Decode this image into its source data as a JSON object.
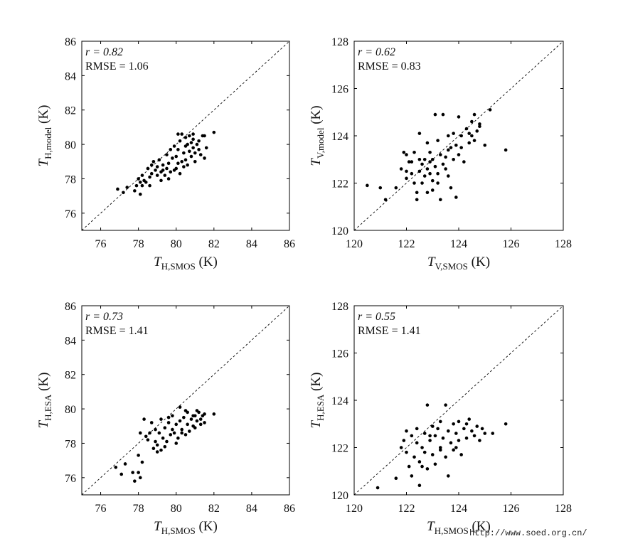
{
  "chart_data": [
    {
      "id": "p1",
      "type": "scatter",
      "xlim": [
        75,
        86
      ],
      "ylim": [
        75,
        86
      ],
      "xticks": [
        76,
        78,
        80,
        82,
        84,
        86
      ],
      "yticks": [
        76,
        78,
        80,
        82,
        84,
        86
      ],
      "stat_r": "r = 0.82",
      "stat_rmse": "RMSE = 1.06",
      "xlabel": {
        "main": "T",
        "sub": "H,SMOS",
        "unit": " (K)"
      },
      "ylabel": {
        "main": "T",
        "sub": "H,model",
        "unit": " (K)"
      },
      "points": [
        [
          76.9,
          77.4
        ],
        [
          77.2,
          77.2
        ],
        [
          77.4,
          77.5
        ],
        [
          77.8,
          77.3
        ],
        [
          77.9,
          77.6
        ],
        [
          78.1,
          77.8
        ],
        [
          78.2,
          78.2
        ],
        [
          78.0,
          78.0
        ],
        [
          78.3,
          77.9
        ],
        [
          78.1,
          77.1
        ],
        [
          78.2,
          77.6
        ],
        [
          78.4,
          77.8
        ],
        [
          78.6,
          78.1
        ],
        [
          78.5,
          78.6
        ],
        [
          78.7,
          78.3
        ],
        [
          78.7,
          78.8
        ],
        [
          78.8,
          79.0
        ],
        [
          78.9,
          78.5
        ],
        [
          79.0,
          78.2
        ],
        [
          79.0,
          78.7
        ],
        [
          79.1,
          79.1
        ],
        [
          79.2,
          78.4
        ],
        [
          79.2,
          77.9
        ],
        [
          79.3,
          78.8
        ],
        [
          79.4,
          78.2
        ],
        [
          79.5,
          78.6
        ],
        [
          79.5,
          79.4
        ],
        [
          79.6,
          78.9
        ],
        [
          79.7,
          78.4
        ],
        [
          79.7,
          79.7
        ],
        [
          79.8,
          79.2
        ],
        [
          79.9,
          78.5
        ],
        [
          79.9,
          79.9
        ],
        [
          80.0,
          78.6
        ],
        [
          80.0,
          79.3
        ],
        [
          80.1,
          78.9
        ],
        [
          80.1,
          79.7
        ],
        [
          80.2,
          78.3
        ],
        [
          80.2,
          80.2
        ],
        [
          80.3,
          79.0
        ],
        [
          80.3,
          80.6
        ],
        [
          80.4,
          78.7
        ],
        [
          80.4,
          79.5
        ],
        [
          80.5,
          80.4
        ],
        [
          80.5,
          79.1
        ],
        [
          80.6,
          80.0
        ],
        [
          80.6,
          78.8
        ],
        [
          80.7,
          79.6
        ],
        [
          80.7,
          80.5
        ],
        [
          80.8,
          79.3
        ],
        [
          80.8,
          80.1
        ],
        [
          80.9,
          79.8
        ],
        [
          80.9,
          80.3
        ],
        [
          81.0,
          79.5
        ],
        [
          81.0,
          79.0
        ],
        [
          81.1,
          80.0
        ],
        [
          81.2,
          79.7
        ],
        [
          81.3,
          79.4
        ],
        [
          81.4,
          80.5
        ],
        [
          81.5,
          79.2
        ],
        [
          81.6,
          79.8
        ],
        [
          82.0,
          80.7
        ],
        [
          78.6,
          77.6
        ],
        [
          79.3,
          78.5
        ],
        [
          79.6,
          78.0
        ],
        [
          80.1,
          80.6
        ],
        [
          80.5,
          79.9
        ],
        [
          81.2,
          80.2
        ],
        [
          81.5,
          80.5
        ],
        [
          80.9,
          80.6
        ]
      ]
    },
    {
      "id": "p2",
      "type": "scatter",
      "xlim": [
        120,
        128
      ],
      "ylim": [
        120,
        128
      ],
      "xticks": [
        120,
        122,
        124,
        126,
        128
      ],
      "yticks": [
        120,
        122,
        124,
        126,
        128
      ],
      "stat_r": "r = 0.62",
      "stat_rmse": "RMSE = 0.83",
      "xlabel": {
        "main": "T",
        "sub": "V,SMOS",
        "unit": " (K)"
      },
      "ylabel": {
        "main": "T",
        "sub": "V,model",
        "unit": " (K)"
      },
      "points": [
        [
          120.5,
          121.9
        ],
        [
          121.0,
          121.8
        ],
        [
          121.2,
          121.3
        ],
        [
          121.6,
          121.8
        ],
        [
          121.8,
          122.6
        ],
        [
          121.9,
          123.3
        ],
        [
          122.0,
          123.2
        ],
        [
          122.0,
          122.2
        ],
        [
          122.1,
          122.9
        ],
        [
          122.2,
          122.4
        ],
        [
          122.3,
          123.3
        ],
        [
          122.3,
          122.0
        ],
        [
          122.4,
          121.6
        ],
        [
          122.4,
          121.3
        ],
        [
          122.5,
          122.5
        ],
        [
          122.5,
          124.1
        ],
        [
          122.6,
          122.0
        ],
        [
          122.6,
          122.8
        ],
        [
          122.7,
          123.0
        ],
        [
          122.7,
          122.3
        ],
        [
          122.8,
          123.7
        ],
        [
          122.8,
          122.6
        ],
        [
          122.8,
          121.6
        ],
        [
          122.9,
          122.9
        ],
        [
          122.9,
          123.3
        ],
        [
          123.0,
          122.1
        ],
        [
          123.0,
          123.0
        ],
        [
          123.1,
          124.9
        ],
        [
          123.1,
          122.7
        ],
        [
          123.2,
          123.8
        ],
        [
          123.2,
          122.4
        ],
        [
          123.3,
          123.2
        ],
        [
          123.3,
          121.3
        ],
        [
          123.4,
          122.8
        ],
        [
          123.4,
          124.9
        ],
        [
          123.5,
          123.1
        ],
        [
          123.5,
          122.6
        ],
        [
          123.6,
          124.0
        ],
        [
          123.6,
          122.3
        ],
        [
          123.7,
          123.5
        ],
        [
          123.7,
          121.8
        ],
        [
          123.8,
          124.1
        ],
        [
          123.8,
          123.0
        ],
        [
          123.9,
          121.4
        ],
        [
          123.9,
          123.6
        ],
        [
          124.0,
          124.8
        ],
        [
          124.0,
          123.2
        ],
        [
          124.1,
          124.0
        ],
        [
          124.1,
          123.5
        ],
        [
          124.2,
          122.9
        ],
        [
          124.3,
          124.3
        ],
        [
          124.4,
          123.7
        ],
        [
          124.5,
          124.6
        ],
        [
          124.5,
          124.0
        ],
        [
          124.6,
          123.8
        ],
        [
          124.6,
          124.9
        ],
        [
          124.7,
          124.2
        ],
        [
          124.8,
          124.5
        ],
        [
          125.0,
          123.6
        ],
        [
          125.2,
          125.1
        ],
        [
          125.8,
          123.4
        ],
        [
          122.2,
          122.9
        ],
        [
          122.9,
          122.4
        ],
        [
          123.6,
          123.4
        ],
        [
          124.4,
          124.1
        ],
        [
          123.0,
          121.7
        ],
        [
          122.5,
          123.0
        ],
        [
          124.8,
          124.4
        ],
        [
          123.2,
          122.0
        ],
        [
          122.0,
          122.5
        ]
      ]
    },
    {
      "id": "p3",
      "type": "scatter",
      "xlim": [
        75,
        86
      ],
      "ylim": [
        75,
        86
      ],
      "xticks": [
        76,
        78,
        80,
        82,
        84,
        86
      ],
      "yticks": [
        76,
        78,
        80,
        82,
        84,
        86
      ],
      "stat_r": "r = 0.73",
      "stat_rmse": "RMSE = 1.41",
      "xlabel": {
        "main": "T",
        "sub": "H,SMOS",
        "unit": " (K)"
      },
      "ylabel": {
        "main": "T",
        "sub": "H,ESA",
        "unit": " (K)"
      },
      "points": [
        [
          76.8,
          76.6
        ],
        [
          77.1,
          76.2
        ],
        [
          77.3,
          76.8
        ],
        [
          77.7,
          76.3
        ],
        [
          77.8,
          75.8
        ],
        [
          78.0,
          77.3
        ],
        [
          78.0,
          76.3
        ],
        [
          78.1,
          76.0
        ],
        [
          78.2,
          76.9
        ],
        [
          78.1,
          78.6
        ],
        [
          78.3,
          79.4
        ],
        [
          78.5,
          78.2
        ],
        [
          78.6,
          78.6
        ],
        [
          78.7,
          79.2
        ],
        [
          78.8,
          77.7
        ],
        [
          78.9,
          78.8
        ],
        [
          79.0,
          77.9
        ],
        [
          79.1,
          78.6
        ],
        [
          79.2,
          79.4
        ],
        [
          79.2,
          77.6
        ],
        [
          79.3,
          78.3
        ],
        [
          79.4,
          78.9
        ],
        [
          79.5,
          78.1
        ],
        [
          79.6,
          79.2
        ],
        [
          79.7,
          78.5
        ],
        [
          79.8,
          79.6
        ],
        [
          79.9,
          78.6
        ],
        [
          80.0,
          79.1
        ],
        [
          80.1,
          78.3
        ],
        [
          80.2,
          79.3
        ],
        [
          80.2,
          80.1
        ],
        [
          80.3,
          78.8
        ],
        [
          80.4,
          79.5
        ],
        [
          80.5,
          78.5
        ],
        [
          80.6,
          79.8
        ],
        [
          80.6,
          79.1
        ],
        [
          80.7,
          78.7
        ],
        [
          80.8,
          79.4
        ],
        [
          80.9,
          79.0
        ],
        [
          81.0,
          79.6
        ],
        [
          81.0,
          78.9
        ],
        [
          81.1,
          79.3
        ],
        [
          81.2,
          79.8
        ],
        [
          81.3,
          79.1
        ],
        [
          81.4,
          79.6
        ],
        [
          81.5,
          79.2
        ],
        [
          81.5,
          79.7
        ],
        [
          82.0,
          79.7
        ],
        [
          79.0,
          77.5
        ],
        [
          79.4,
          77.8
        ],
        [
          79.8,
          78.8
        ],
        [
          80.5,
          79.9
        ],
        [
          80.9,
          79.6
        ],
        [
          81.3,
          79.4
        ],
        [
          80.0,
          78.0
        ],
        [
          79.6,
          79.5
        ],
        [
          80.3,
          78.6
        ],
        [
          78.4,
          78.4
        ],
        [
          78.9,
          78.1
        ],
        [
          81.1,
          79.9
        ]
      ]
    },
    {
      "id": "p4",
      "type": "scatter",
      "xlim": [
        120,
        128
      ],
      "ylim": [
        120,
        128
      ],
      "xticks": [
        120,
        122,
        124,
        126,
        128
      ],
      "yticks": [
        120,
        122,
        124,
        126,
        128
      ],
      "stat_r": "r = 0.55",
      "stat_rmse": "RMSE = 1.41",
      "xlabel": {
        "main": "T",
        "sub": "H,SMOS",
        "unit": " (K)"
      },
      "ylabel": {
        "main": "T",
        "sub": "H,ESA",
        "unit": " (K)"
      },
      "points": [
        [
          120.9,
          120.3
        ],
        [
          121.6,
          120.7
        ],
        [
          121.8,
          122.0
        ],
        [
          121.9,
          122.3
        ],
        [
          122.0,
          121.8
        ],
        [
          122.0,
          122.7
        ],
        [
          122.1,
          121.2
        ],
        [
          122.2,
          122.5
        ],
        [
          122.2,
          120.8
        ],
        [
          122.3,
          121.6
        ],
        [
          122.4,
          122.2
        ],
        [
          122.4,
          122.8
        ],
        [
          122.5,
          121.4
        ],
        [
          122.5,
          120.4
        ],
        [
          122.6,
          122.0
        ],
        [
          122.7,
          121.8
        ],
        [
          122.7,
          122.6
        ],
        [
          122.8,
          121.1
        ],
        [
          122.8,
          123.8
        ],
        [
          122.9,
          122.3
        ],
        [
          123.0,
          121.7
        ],
        [
          123.0,
          122.9
        ],
        [
          123.1,
          122.5
        ],
        [
          123.1,
          121.3
        ],
        [
          123.2,
          122.8
        ],
        [
          123.3,
          121.9
        ],
        [
          123.3,
          123.1
        ],
        [
          123.4,
          122.4
        ],
        [
          123.5,
          123.8
        ],
        [
          123.5,
          121.6
        ],
        [
          123.6,
          122.7
        ],
        [
          123.6,
          120.8
        ],
        [
          123.7,
          122.2
        ],
        [
          123.8,
          123.0
        ],
        [
          123.8,
          121.9
        ],
        [
          123.9,
          122.6
        ],
        [
          124.0,
          122.3
        ],
        [
          124.0,
          123.1
        ],
        [
          124.1,
          121.7
        ],
        [
          124.2,
          122.8
        ],
        [
          124.3,
          122.4
        ],
        [
          124.4,
          123.2
        ],
        [
          124.5,
          122.7
        ],
        [
          124.6,
          122.5
        ],
        [
          124.7,
          122.9
        ],
        [
          124.8,
          122.3
        ],
        [
          124.9,
          122.8
        ],
        [
          125.0,
          122.6
        ],
        [
          125.3,
          122.6
        ],
        [
          125.8,
          123.0
        ],
        [
          123.3,
          122.0
        ],
        [
          122.6,
          121.2
        ],
        [
          123.9,
          122.0
        ],
        [
          124.3,
          123.0
        ],
        [
          122.9,
          122.5
        ]
      ]
    }
  ],
  "watermark": "http://www.soed.org.cn/"
}
